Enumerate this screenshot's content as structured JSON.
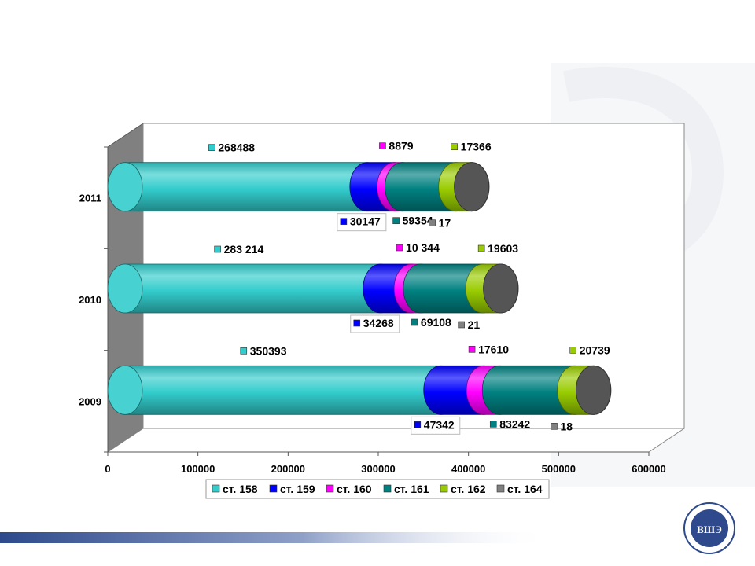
{
  "chart_data": {
    "type": "bar",
    "orientation": "horizontal",
    "stacked": true,
    "style": "3d-cylinder",
    "categories": [
      "2011",
      "2010",
      "2009"
    ],
    "series": [
      {
        "name": "ст. 158",
        "color": "#33CCCC",
        "values": [
          268488,
          283214,
          350393
        ],
        "labels": [
          "268488",
          "283 214",
          "350393"
        ]
      },
      {
        "name": "ст. 159",
        "color": "#0000FF",
        "values": [
          30147,
          34268,
          47342
        ],
        "labels": [
          "30147",
          "34268",
          "47342"
        ]
      },
      {
        "name": "ст. 160",
        "color": "#FF00FF",
        "values": [
          8879,
          10344,
          17610
        ],
        "labels": [
          "8879",
          "10 344",
          "17610"
        ]
      },
      {
        "name": "ст. 161",
        "color": "#008080",
        "values": [
          59354,
          69108,
          83242
        ],
        "labels": [
          "59354",
          "69108",
          "83242"
        ]
      },
      {
        "name": "ст. 162",
        "color": "#99CC00",
        "values": [
          17366,
          19603,
          20739
        ],
        "labels": [
          "17366",
          "19603",
          "20739"
        ]
      },
      {
        "name": "ст. 164",
        "color": "#808080",
        "values": [
          17,
          21,
          18
        ],
        "labels": [
          "17",
          "21",
          "18"
        ]
      }
    ],
    "x_ticks": [
      "0",
      "100000",
      "200000",
      "300000",
      "400000",
      "500000",
      "600000"
    ],
    "xlim": [
      0,
      600000
    ],
    "grid": false,
    "legend_position": "bottom"
  },
  "footer": {
    "logo_icon": "hse-logo-icon",
    "logo_letters": "ВШЭ"
  }
}
